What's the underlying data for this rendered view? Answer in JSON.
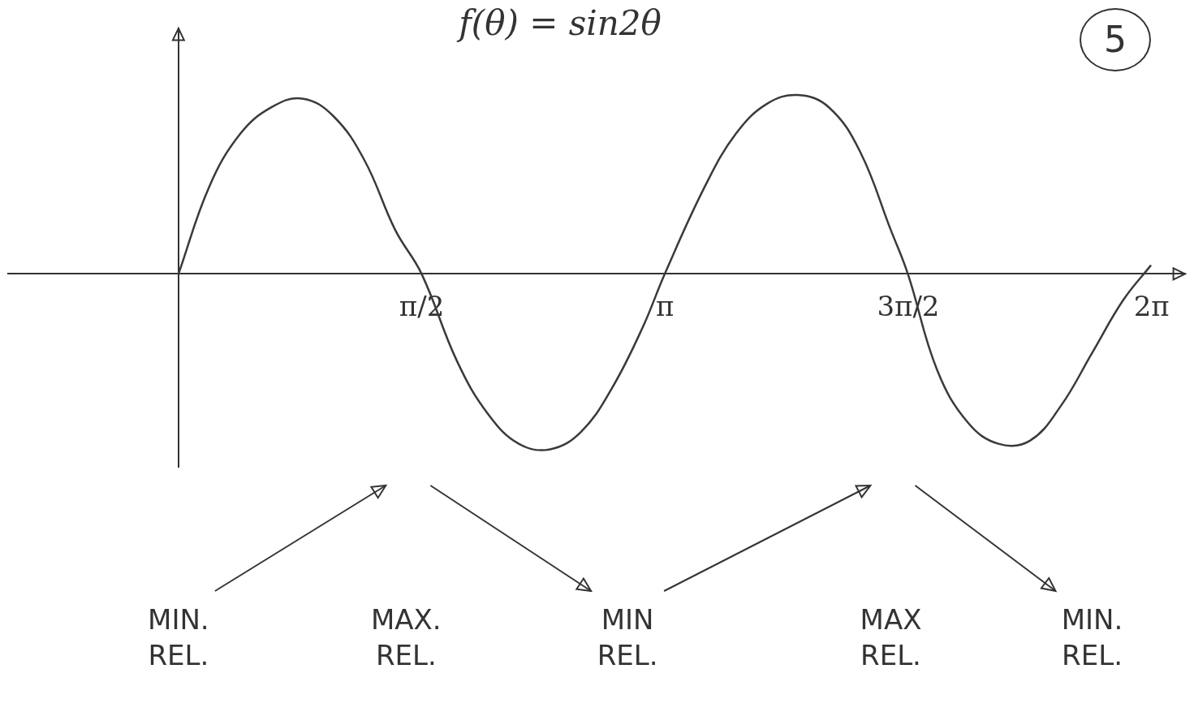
{
  "chart_data": {
    "type": "line",
    "title": "f(θ) = sin2θ",
    "badge": "5",
    "x": [
      0,
      0.2,
      0.4,
      0.6,
      0.8,
      1.0,
      1.2,
      1.4,
      1.57,
      1.8,
      2.0,
      2.2,
      2.4,
      2.6,
      2.8,
      3.0,
      3.14,
      3.4,
      3.6,
      3.8,
      4.0,
      4.2,
      4.4,
      4.6,
      4.71,
      4.9,
      5.1,
      5.3,
      5.5,
      5.7,
      5.9,
      6.1,
      6.28
    ],
    "values": [
      0,
      0.5,
      0.8,
      0.95,
      1.0,
      0.9,
      0.65,
      0.25,
      0,
      -0.5,
      -0.8,
      -0.97,
      -1.0,
      -0.9,
      -0.65,
      -0.3,
      0,
      0.5,
      0.8,
      0.97,
      1.02,
      0.95,
      0.7,
      0.25,
      0,
      -0.55,
      -0.85,
      -0.97,
      -0.95,
      -0.75,
      -0.45,
      -0.15,
      0.05
    ],
    "color": "#3a3a3a",
    "marker": "none",
    "xlim": [
      -1.1,
      6.5
    ],
    "ylim": [
      -1.1,
      1.4
    ],
    "xticks": [
      {
        "value": 1.5708,
        "label": "π/2"
      },
      {
        "value": 3.1416,
        "label": "π"
      },
      {
        "value": 4.7124,
        "label": "3π/2"
      },
      {
        "value": 6.2832,
        "label": "2π"
      }
    ],
    "yticks": [],
    "grid": false,
    "tick_labels": "x",
    "annotations": [
      {
        "text": "MIN. REL.",
        "x": 0
      },
      {
        "text": "MAX. REL.",
        "x": 1.47
      },
      {
        "text": "MIN REL.",
        "x": 2.9
      },
      {
        "text": "MAX REL.",
        "x": 4.6
      },
      {
        "text": "MIN. REL.",
        "x": 5.9
      }
    ]
  }
}
